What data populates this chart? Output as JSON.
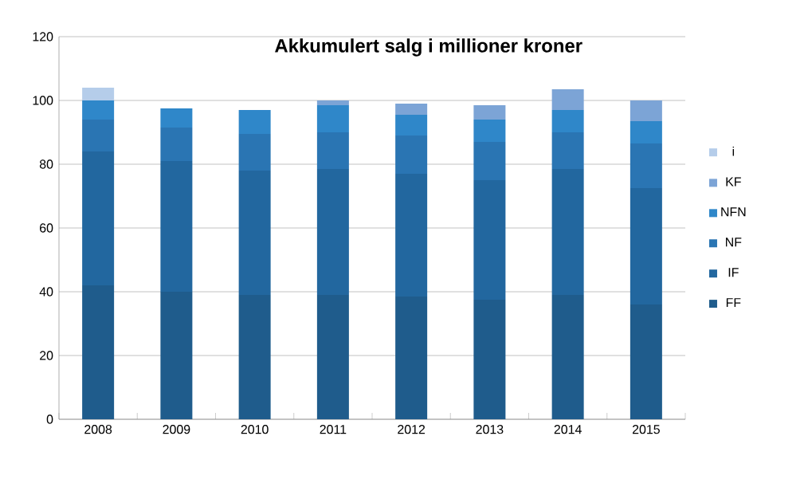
{
  "chart_data": {
    "type": "bar",
    "title": "Akkumulert salg i millioner kroner",
    "stacked": true,
    "grid": "y",
    "legend": "right",
    "categories": [
      "2008",
      "2009",
      "2010",
      "2011",
      "2012",
      "2013",
      "2014",
      "2015"
    ],
    "ylim": [
      0,
      120
    ],
    "yticks": [
      0,
      20,
      40,
      60,
      80,
      100,
      120
    ],
    "series": [
      {
        "name": "FF",
        "color": "#1f5c8c",
        "values": [
          42,
          40,
          39,
          39,
          38.5,
          37.5,
          39,
          36
        ]
      },
      {
        "name": "IF",
        "color": "#22679f",
        "values": [
          42,
          41,
          39,
          39.5,
          38.5,
          37.5,
          39.5,
          36.5
        ]
      },
      {
        "name": "NF",
        "color": "#2a75b3",
        "values": [
          10,
          10.5,
          11.5,
          11.5,
          12,
          12,
          11.5,
          14
        ]
      },
      {
        "name": "NFN",
        "color": "#2f87c9",
        "values": [
          6,
          6,
          7.5,
          8.5,
          6.5,
          7,
          7,
          7
        ]
      },
      {
        "name": "KF",
        "color": "#7ca4d6",
        "values": [
          0,
          0,
          0,
          1.5,
          3.5,
          4.5,
          6.5,
          6.5
        ]
      },
      {
        "name": "i",
        "color": "#b5cdea",
        "values": [
          4,
          0,
          0,
          0,
          0,
          0,
          0,
          0
        ]
      }
    ]
  }
}
